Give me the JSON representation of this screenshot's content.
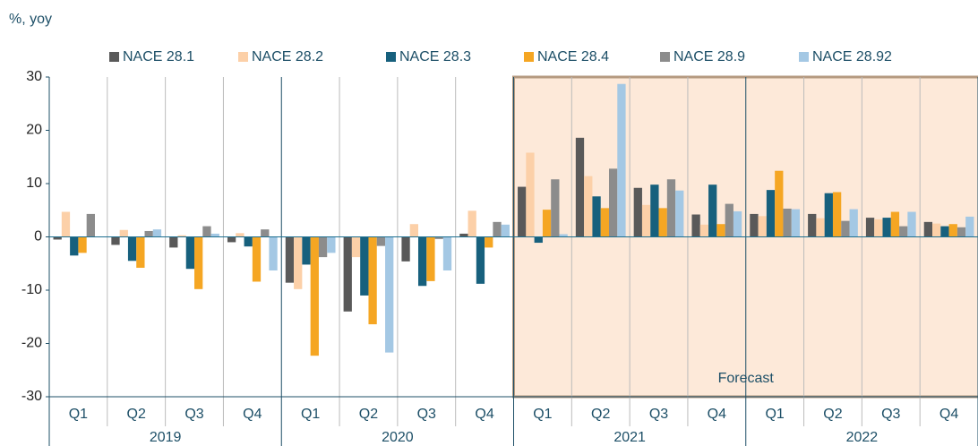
{
  "chart_data": {
    "type": "bar",
    "y_label": "%, yoy",
    "categories": [
      "Q1",
      "Q2",
      "Q3",
      "Q4",
      "Q1",
      "Q2",
      "Q3",
      "Q4",
      "Q1",
      "Q2",
      "Q3",
      "Q4",
      "Q1",
      "Q2",
      "Q3",
      "Q4"
    ],
    "years": [
      "2019",
      "2020",
      "2021",
      "2022"
    ],
    "series": [
      {
        "name": "NACE 28.1",
        "color": "#595959",
        "values": [
          -0.5,
          -1.5,
          -2,
          -1,
          -8.6,
          -14,
          -4.6,
          0.6,
          9.4,
          18.6,
          9.2,
          4.2,
          4.3,
          4.3,
          3.6,
          2.8
        ]
      },
      {
        "name": "NACE 28.2",
        "color": "#fcd0a8",
        "values": [
          4.7,
          1.3,
          0.3,
          0.7,
          -9.8,
          -3.8,
          2.4,
          4.9,
          15.8,
          11.4,
          6,
          2.3,
          3.9,
          3.5,
          3.3,
          2.5
        ]
      },
      {
        "name": "NACE 28.3",
        "color": "#17607d",
        "values": [
          -3.5,
          -4.5,
          -6,
          -1.8,
          -5.2,
          -11,
          -9.2,
          -8.8,
          -1.1,
          7.6,
          9.8,
          9.8,
          8.8,
          8.2,
          3.6,
          2
        ]
      },
      {
        "name": "NACE 28.4",
        "color": "#f5a623",
        "values": [
          -3,
          -5.8,
          -9.8,
          -8.4,
          -22.3,
          -16.4,
          -8.3,
          -2,
          5.1,
          5.4,
          5.4,
          2.4,
          12.4,
          8.4,
          4.7,
          2.4
        ]
      },
      {
        "name": "NACE 28.9",
        "color": "#8c8c8c",
        "values": [
          4.3,
          1.1,
          2,
          1.4,
          -3.8,
          -1.7,
          -0.4,
          2.8,
          10.8,
          12.8,
          10.8,
          6.2,
          5.3,
          3,
          2,
          1.8
        ]
      },
      {
        "name": "NACE 28.92",
        "color": "#a4c8e4",
        "values": [
          0,
          1.4,
          0.6,
          -6.3,
          -3,
          -21.7,
          -6.3,
          2.3,
          0.5,
          28.7,
          8.7,
          4.8,
          5.2,
          5.2,
          4.7,
          3.8
        ]
      }
    ],
    "ylim": [
      -30,
      30
    ],
    "yticks": [
      -30,
      -20,
      -10,
      0,
      10,
      20,
      30
    ],
    "forecast": {
      "label": "Forecast",
      "start_category": 8,
      "fill": "#fde9d9",
      "border": "#b59a80"
    }
  }
}
